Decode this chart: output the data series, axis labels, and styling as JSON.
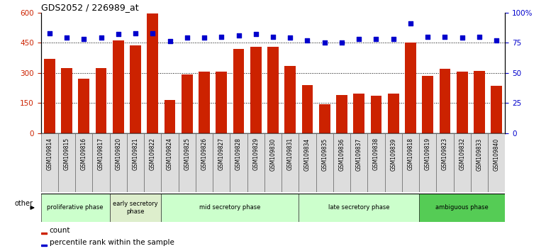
{
  "title": "GDS2052 / 226989_at",
  "samples": [
    "GSM109814",
    "GSM109815",
    "GSM109816",
    "GSM109817",
    "GSM109820",
    "GSM109821",
    "GSM109822",
    "GSM109824",
    "GSM109825",
    "GSM109826",
    "GSM109827",
    "GSM109828",
    "GSM109829",
    "GSM109830",
    "GSM109831",
    "GSM109834",
    "GSM109835",
    "GSM109836",
    "GSM109837",
    "GSM109838",
    "GSM109839",
    "GSM109818",
    "GSM109819",
    "GSM109823",
    "GSM109832",
    "GSM109833",
    "GSM109840"
  ],
  "counts": [
    370,
    325,
    270,
    325,
    460,
    435,
    595,
    165,
    290,
    305,
    305,
    420,
    430,
    430,
    335,
    240,
    145,
    190,
    195,
    185,
    195,
    450,
    285,
    320,
    305,
    310,
    235
  ],
  "percentiles": [
    83,
    79,
    78,
    79,
    82,
    83,
    83,
    76,
    79,
    79,
    80,
    81,
    82,
    80,
    79,
    77,
    75,
    75,
    78,
    78,
    78,
    91,
    80,
    80,
    79,
    80,
    77
  ],
  "phases": [
    {
      "label": "proliferative phase",
      "start": 0,
      "end": 4,
      "color": "#ccffcc"
    },
    {
      "label": "early secretory\nphase",
      "start": 4,
      "end": 7,
      "color": "#ddeecc"
    },
    {
      "label": "mid secretory phase",
      "start": 7,
      "end": 15,
      "color": "#ccffcc"
    },
    {
      "label": "late secretory phase",
      "start": 15,
      "end": 22,
      "color": "#ccffcc"
    },
    {
      "label": "ambiguous phase",
      "start": 22,
      "end": 27,
      "color": "#55cc55"
    }
  ],
  "bar_color": "#cc2200",
  "dot_color": "#0000cc",
  "ylim_left": [
    0,
    600
  ],
  "ylim_right": [
    0,
    100
  ],
  "yticks_left": [
    0,
    150,
    300,
    450,
    600
  ],
  "yticks_right": [
    0,
    25,
    50,
    75,
    100
  ],
  "ytick_labels_left": [
    "0",
    "150",
    "300",
    "450",
    "600"
  ],
  "ytick_labels_right": [
    "0",
    "25",
    "50",
    "75",
    "100%"
  ],
  "legend_count_label": "count",
  "legend_pct_label": "percentile rank within the sample",
  "other_label": "other"
}
